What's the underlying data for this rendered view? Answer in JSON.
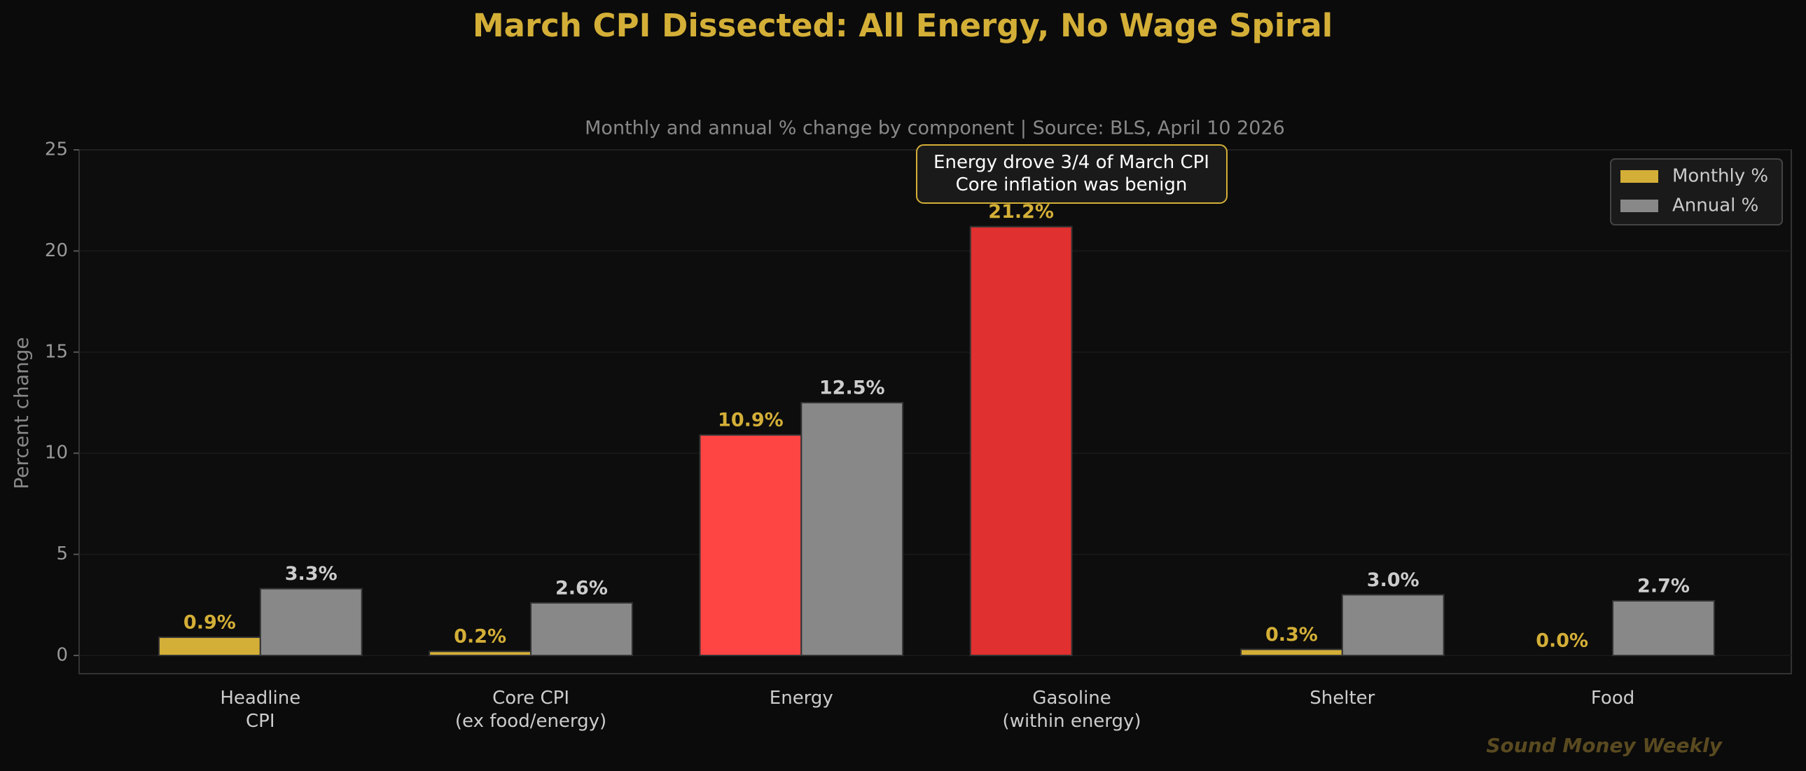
{
  "chart_data": {
    "type": "bar",
    "title": "March CPI Dissected: All Energy, No Wage Spiral",
    "subtitle": "Monthly and annual % change by component  |  Source: BLS, April 10 2026",
    "y_label": "Percent change",
    "annotation": "Energy drove 3/4 of March CPI\nCore inflation was benign",
    "watermark": "Sound Money Weekly",
    "categories": [
      "Headline\nCPI",
      "Core CPI\n(ex food/energy)",
      "Energy",
      "Gasoline\n(within energy)",
      "Shelter",
      "Food"
    ],
    "series": [
      {
        "name": "Monthly %",
        "color": "#d4af37",
        "colors": [
          "#d4af37",
          "#d4af37",
          "#ff4444",
          "#e03030",
          "#d4af37",
          "#d4af37"
        ],
        "values": [
          0.9,
          0.2,
          10.9,
          21.2,
          0.3,
          0.0
        ],
        "value_labels": [
          "0.9%",
          "0.2%",
          "10.9%",
          "21.2%",
          "0.3%",
          "0.0%"
        ]
      },
      {
        "name": "Annual %",
        "color": "#888888",
        "values": [
          3.3,
          2.6,
          12.5,
          null,
          3.0,
          2.7
        ],
        "value_labels": [
          "3.3%",
          "2.6%",
          "12.5%",
          null,
          "3.0%",
          "2.7%"
        ]
      }
    ],
    "ylim": [
      -0.9,
      25
    ],
    "yticks": [
      0,
      5,
      10,
      15,
      20,
      25
    ],
    "grid": true,
    "legend": "upper right"
  }
}
